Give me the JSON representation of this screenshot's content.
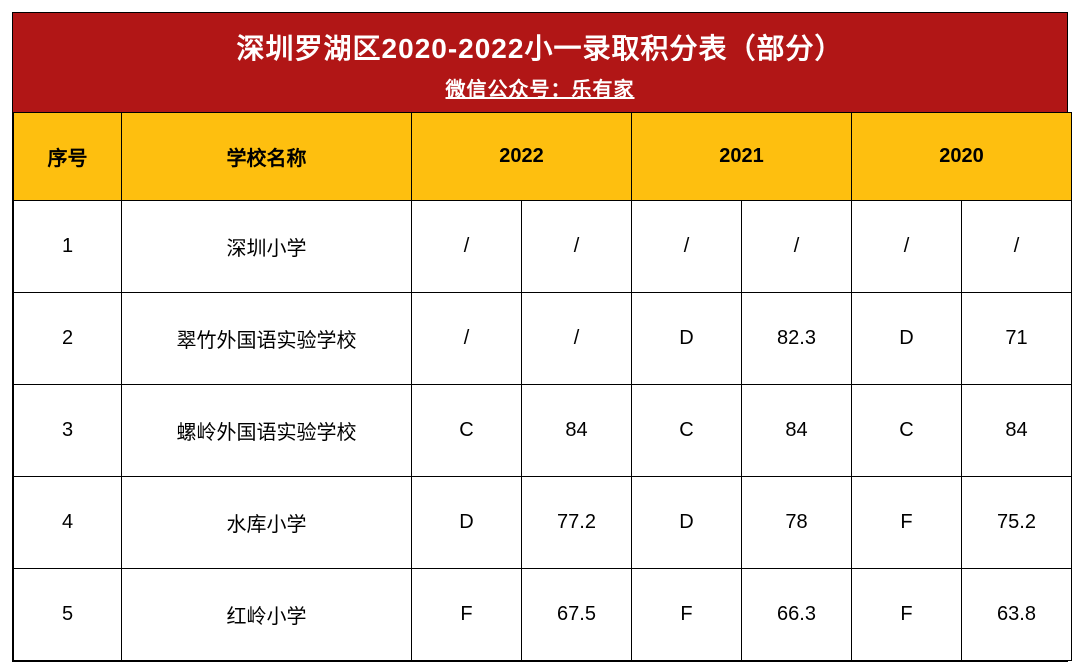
{
  "colors": {
    "title_bg": "#b11616",
    "title_text": "#ffffff",
    "header_bg": "#febf0f",
    "header_text": "#000000",
    "cell_bg": "#ffffff",
    "border": "#000000"
  },
  "title": "深圳罗湖区2020-2022小一录取积分表（部分）",
  "subtitle": "微信公众号：乐有家",
  "columns": {
    "idx": "序号",
    "name": "学校名称",
    "y2022": "2022",
    "y2021": "2021",
    "y2020": "2020"
  },
  "rows": [
    {
      "idx": "1",
      "name": "深圳小学",
      "y2022a": "/",
      "y2022b": "/",
      "y2021a": "/",
      "y2021b": "/",
      "y2020a": "/",
      "y2020b": "/"
    },
    {
      "idx": "2",
      "name": "翠竹外国语实验学校",
      "y2022a": "/",
      "y2022b": "/",
      "y2021a": "D",
      "y2021b": "82.3",
      "y2020a": "D",
      "y2020b": "71"
    },
    {
      "idx": "3",
      "name": "螺岭外国语实验学校",
      "y2022a": "C",
      "y2022b": "84",
      "y2021a": "C",
      "y2021b": "84",
      "y2020a": "C",
      "y2020b": "84"
    },
    {
      "idx": "4",
      "name": "水库小学",
      "y2022a": "D",
      "y2022b": "77.2",
      "y2021a": "D",
      "y2021b": "78",
      "y2020a": "F",
      "y2020b": "75.2"
    },
    {
      "idx": "5",
      "name": "红岭小学",
      "y2022a": "F",
      "y2022b": "67.5",
      "y2021a": "F",
      "y2021b": "66.3",
      "y2020a": "F",
      "y2020b": "63.8"
    }
  ]
}
